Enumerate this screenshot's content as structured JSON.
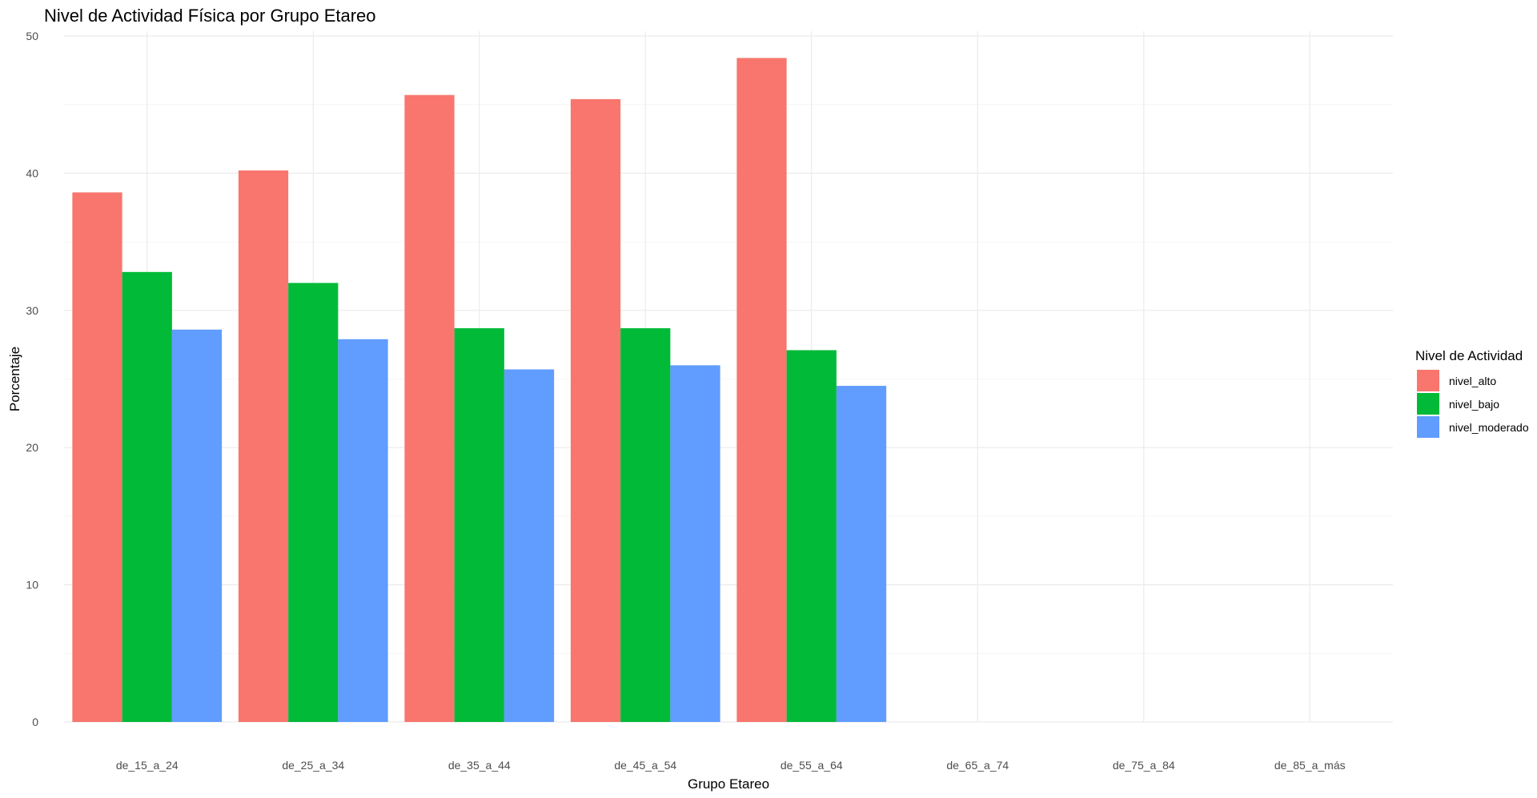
{
  "chart_data": {
    "type": "bar",
    "title": "Nivel de Actividad Física por Grupo Etareo",
    "xlabel": "Grupo Etareo",
    "ylabel": "Porcentaje",
    "categories": [
      "de_15_a_24",
      "de_25_a_34",
      "de_35_a_44",
      "de_45_a_54",
      "de_55_a_64",
      "de_65_a_74",
      "de_75_a_84",
      "de_85_a_más"
    ],
    "y_ticks": [
      "0",
      "10",
      "20",
      "30",
      "40",
      "50"
    ],
    "ylim": [
      0,
      50
    ],
    "grid": true,
    "legend": {
      "title": "Nivel de Actividad",
      "position": "right"
    },
    "series": [
      {
        "name": "nivel_alto",
        "color": "#F8766D",
        "values": [
          38.6,
          40.2,
          45.7,
          45.4,
          48.4,
          null,
          null,
          null
        ]
      },
      {
        "name": "nivel_bajo",
        "color": "#00BA38",
        "values": [
          32.8,
          32.0,
          28.7,
          28.7,
          27.1,
          null,
          null,
          null
        ]
      },
      {
        "name": "nivel_moderado",
        "color": "#619CFF",
        "values": [
          28.6,
          27.9,
          25.7,
          26.0,
          24.5,
          null,
          null,
          null
        ]
      }
    ]
  }
}
